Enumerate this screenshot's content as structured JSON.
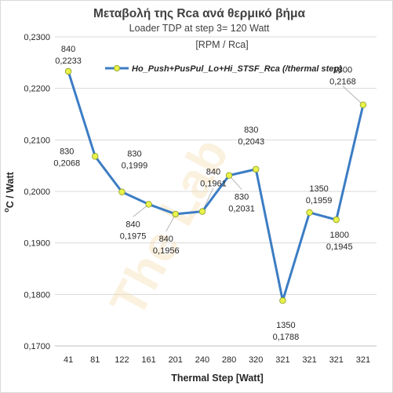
{
  "chart_data": {
    "type": "line",
    "title": "Μεταβολή της Rca ανά θερμικό βήμα",
    "subtitle": "Loader TDP at step 3= 120 Watt",
    "subtitle2": "[RPM / Rca]",
    "xlabel": "Thermal Step [Watt]",
    "ylabel_prefix": "o",
    "ylabel": "C / Watt",
    "categories": [
      "41",
      "81",
      "122",
      "161",
      "201",
      "240",
      "280",
      "320",
      "321",
      "321",
      "321",
      "321"
    ],
    "series": [
      {
        "name": "Ho_Push+PusPul_Lo+Hi_STSF_Rca (/thermal step)",
        "values": [
          0.2233,
          0.2068,
          0.1999,
          0.1975,
          0.1956,
          0.1961,
          0.2031,
          0.2043,
          0.1788,
          0.1959,
          0.1945,
          0.2168
        ],
        "rpm": [
          "840",
          "830",
          "830",
          "840",
          "840",
          "840",
          "830",
          "830",
          "1350",
          "1350",
          "1800",
          "1800"
        ],
        "value_labels": [
          "0,2233",
          "0,2068",
          "0,1999",
          "0,1975",
          "0,1956",
          "0,1961",
          "0,2031",
          "0,2043",
          "0,1788",
          "0,1959",
          "0,1945",
          "0,2168"
        ],
        "color": "#3c7dc4",
        "marker_color": "#e8f24a"
      }
    ],
    "ylim": [
      0.17,
      0.23
    ],
    "yticks": [
      "0,1700",
      "0,1800",
      "0,1900",
      "0,2000",
      "0,2100",
      "0,2200",
      "0,2300"
    ],
    "grid": true,
    "legend": "top-right",
    "watermark": "The Lab"
  }
}
